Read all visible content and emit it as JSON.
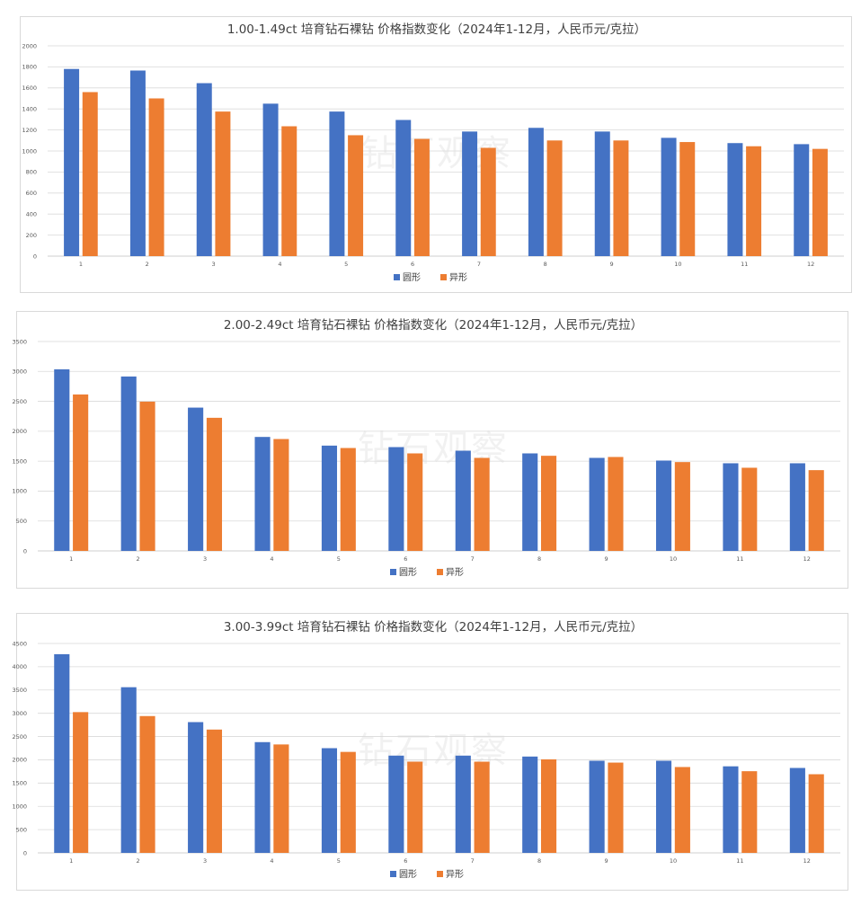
{
  "watermark": "钻石观察",
  "colors": {
    "round": "#4472c4",
    "fancy": "#ed7d31",
    "grid": "#d9d9d9",
    "axis": "#bfbfbf"
  },
  "chart_data": [
    {
      "type": "bar",
      "title": "1.00-1.49ct 培育钻石裸钻 价格指数变化（2024年1-12月，人民币元/克拉）",
      "categories": [
        "1",
        "2",
        "3",
        "4",
        "5",
        "6",
        "7",
        "8",
        "9",
        "10",
        "11",
        "12"
      ],
      "series": [
        {
          "name": "圆形",
          "values": [
            1780,
            1765,
            1645,
            1450,
            1375,
            1295,
            1185,
            1220,
            1185,
            1125,
            1075,
            1065
          ]
        },
        {
          "name": "异形",
          "values": [
            1560,
            1500,
            1375,
            1235,
            1150,
            1115,
            1030,
            1100,
            1100,
            1085,
            1045,
            1020
          ]
        }
      ],
      "ylim": [
        0,
        2000
      ],
      "yticks": [
        "0",
        "200",
        "400",
        "600",
        "800",
        "1000",
        "1200",
        "1400",
        "1600",
        "1800",
        "2000"
      ],
      "grid": true,
      "legend": "bottom"
    },
    {
      "type": "bar",
      "title": "2.00-2.49ct 培育钻石裸钻 价格指数变化（2024年1-12月，人民币元/克拉）",
      "categories": [
        "1",
        "2",
        "3",
        "4",
        "5",
        "6",
        "7",
        "8",
        "9",
        "10",
        "11",
        "12"
      ],
      "series": [
        {
          "name": "圆形",
          "values": [
            3035,
            2915,
            2395,
            1905,
            1760,
            1735,
            1675,
            1630,
            1555,
            1510,
            1465,
            1465
          ]
        },
        {
          "name": "异形",
          "values": [
            2615,
            2495,
            2225,
            1870,
            1720,
            1630,
            1555,
            1590,
            1570,
            1485,
            1390,
            1350
          ]
        }
      ],
      "ylim": [
        0,
        3500
      ],
      "yticks": [
        "0",
        "500",
        "1000",
        "1500",
        "2000",
        "2500",
        "3000",
        "3500"
      ],
      "grid": true,
      "legend": "bottom"
    },
    {
      "type": "bar",
      "title": "3.00-3.99ct 培育钻石裸钻 价格指数变化（2024年1-12月，人民币元/克拉）",
      "categories": [
        "1",
        "2",
        "3",
        "4",
        "5",
        "6",
        "7",
        "8",
        "9",
        "10",
        "11",
        "12"
      ],
      "series": [
        {
          "name": "圆形",
          "values": [
            4270,
            3560,
            2810,
            2380,
            2250,
            2090,
            2090,
            2070,
            1980,
            1980,
            1860,
            1825
          ]
        },
        {
          "name": "异形",
          "values": [
            3025,
            2940,
            2650,
            2330,
            2170,
            1960,
            1960,
            2010,
            1940,
            1845,
            1755,
            1690
          ]
        }
      ],
      "ylim": [
        0,
        4500
      ],
      "yticks": [
        "0",
        "500",
        "1000",
        "1500",
        "2000",
        "2500",
        "3000",
        "3500",
        "4000",
        "4500"
      ],
      "grid": true,
      "legend": "bottom"
    }
  ]
}
